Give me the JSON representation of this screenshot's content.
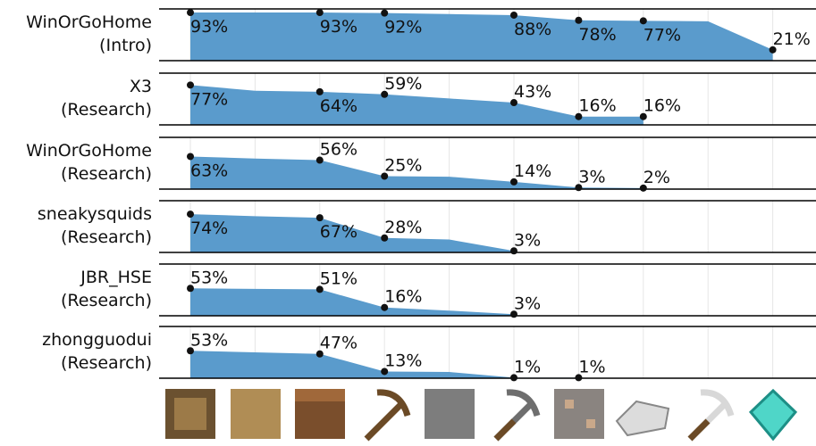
{
  "chart_data": [
    {
      "type": "area",
      "label": [
        "WinOrGoHome",
        "(Intro)"
      ],
      "color": "#5a9bcc",
      "ylim": [
        0,
        100
      ],
      "categories": [
        null,
        null,
        null,
        null,
        null,
        null,
        null,
        null,
        null,
        null
      ],
      "values": [
        93,
        93,
        93,
        92,
        90,
        88,
        78,
        77,
        76,
        21
      ],
      "value_labels": [
        "93%",
        null,
        "93%",
        "92%",
        null,
        "88%",
        "78%",
        "77%",
        null,
        "21%"
      ]
    },
    {
      "type": "area",
      "label": [
        "X3",
        "(Research)"
      ],
      "color": "#5a9bcc",
      "ylim": [
        0,
        100
      ],
      "categories": [
        null,
        null,
        null,
        null,
        null,
        null,
        null,
        null,
        null,
        null
      ],
      "values": [
        77,
        66,
        64,
        59,
        51,
        43,
        16,
        16,
        null,
        null
      ],
      "value_labels": [
        "77%",
        null,
        "64%",
        "59%",
        null,
        "43%",
        "16%",
        "16%",
        null,
        null
      ]
    },
    {
      "type": "area",
      "label": [
        "WinOrGoHome",
        "(Research)"
      ],
      "color": "#5a9bcc",
      "ylim": [
        0,
        100
      ],
      "categories": [
        null,
        null,
        null,
        null,
        null,
        null,
        null,
        null,
        null,
        null
      ],
      "values": [
        63,
        59,
        56,
        25,
        24,
        14,
        3,
        2,
        null,
        null
      ],
      "value_labels": [
        "63%",
        null,
        "56%",
        "25%",
        null,
        "14%",
        "3%",
        "2%",
        null,
        null
      ]
    },
    {
      "type": "area",
      "label": [
        "sneakysquids",
        "(Research)"
      ],
      "color": "#5a9bcc",
      "ylim": [
        0,
        100
      ],
      "categories": [
        null,
        null,
        null,
        null,
        null,
        null,
        null,
        null,
        null,
        null
      ],
      "values": [
        74,
        70,
        67,
        28,
        25,
        3,
        null,
        null,
        null,
        null
      ],
      "value_labels": [
        "74%",
        null,
        "67%",
        "28%",
        null,
        "3%",
        null,
        null,
        null,
        null
      ]
    },
    {
      "type": "area",
      "label": [
        "JBR_HSE",
        "(Research)"
      ],
      "color": "#5a9bcc",
      "ylim": [
        0,
        100
      ],
      "categories": [
        null,
        null,
        null,
        null,
        null,
        null,
        null,
        null,
        null,
        null
      ],
      "values": [
        53,
        52,
        51,
        16,
        10,
        3,
        null,
        null,
        null,
        null
      ],
      "value_labels": [
        "53%",
        null,
        "51%",
        "16%",
        null,
        "3%",
        null,
        null,
        null,
        null
      ]
    },
    {
      "type": "area",
      "label": [
        "zhongguodui",
        "(Research)"
      ],
      "color": "#5a9bcc",
      "ylim": [
        0,
        100
      ],
      "categories": [
        null,
        null,
        null,
        null,
        null,
        null,
        null,
        null,
        null,
        null
      ],
      "values": [
        53,
        50,
        47,
        13,
        12,
        1,
        1,
        null,
        null,
        null
      ],
      "value_labels": [
        "53%",
        null,
        "47%",
        "13%",
        null,
        "1%",
        "1%",
        null,
        null,
        null
      ]
    }
  ]
}
